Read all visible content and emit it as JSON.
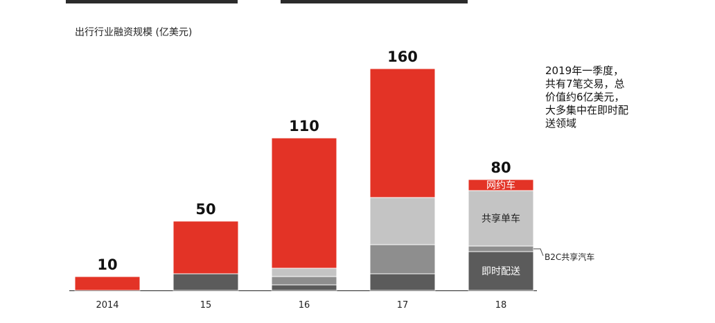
{
  "chart_data": {
    "type": "bar",
    "stacked": true,
    "title": "出行行业融资规模 (亿美元)",
    "categories": [
      "2014",
      "15",
      "16",
      "17",
      "18"
    ],
    "totals": [
      10,
      50,
      110,
      160,
      80
    ],
    "series": [
      {
        "name": "即时配送",
        "color": "#5b5b5b",
        "values": [
          0,
          12,
          4,
          12,
          28
        ]
      },
      {
        "name": "B2C共享汽车",
        "color": "#8e8e8e",
        "values": [
          0,
          0,
          6,
          21,
          4
        ]
      },
      {
        "name": "共享单车",
        "color": "#c4c4c4",
        "values": [
          0,
          0,
          6,
          34,
          40
        ]
      },
      {
        "name": "网约车",
        "color": "#e33326",
        "values": [
          10,
          38,
          94,
          93,
          8
        ]
      }
    ],
    "in_bar_labels": {
      "网约车": "网约车",
      "共享单车": "共享单车",
      "即时配送": "即时配送"
    },
    "callout_label": "B2C共享汽车",
    "annotation": [
      "2019年一季度，",
      "共有7笔交易，总",
      "价值约6亿美元，",
      "大多集中在即时配",
      "送领域"
    ],
    "ylim": [
      0,
      170
    ]
  }
}
